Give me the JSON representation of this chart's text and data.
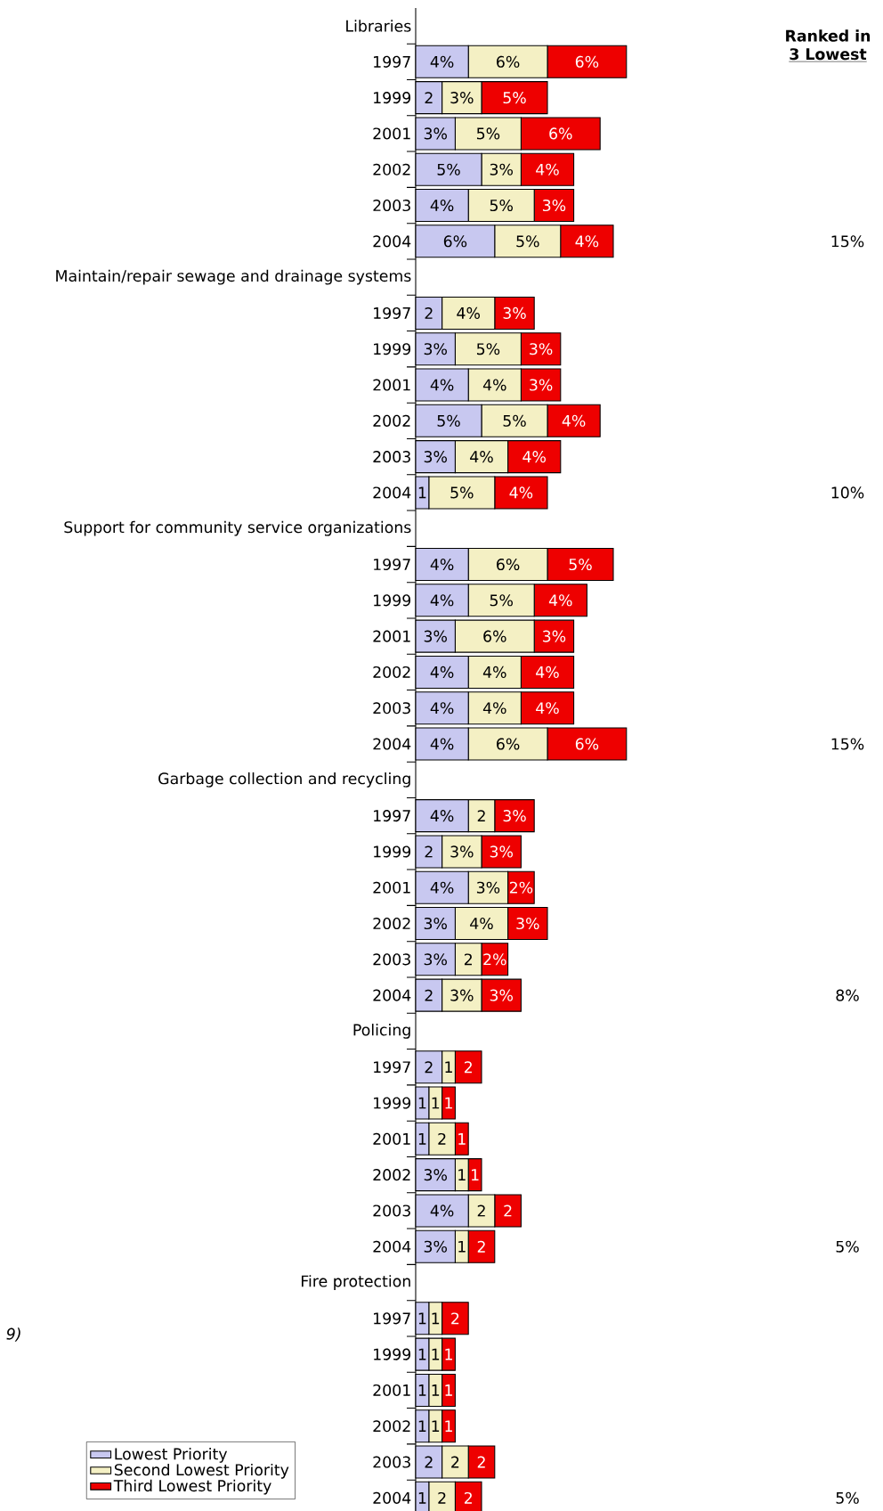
{
  "chart_data": {
    "type": "bar",
    "orientation": "horizontal",
    "stacked": true,
    "legend": "bottom left",
    "categories": [
      "Libraries",
      "1997",
      "1999",
      "2001",
      "2002",
      "2003",
      "2004",
      "Maintain/repair sewage and drainage systems",
      "1997",
      "1999",
      "2001",
      "2002",
      "2003",
      "2004",
      "Support for community service organizations",
      "1997",
      "1999",
      "2001",
      "2002",
      "2003",
      "2004",
      "Garbage collection and recycling",
      "1997",
      "1999",
      "2001",
      "2002",
      "2003",
      "2004",
      "Policing",
      "1997",
      "1999",
      "2001",
      "2002",
      "2003",
      "2004",
      "Fire protection",
      "1997",
      "1999",
      "2001",
      "2002",
      "2003",
      "2004"
    ],
    "series": [
      {
        "name": "Lowest Priority",
        "color": "#c8c8f0",
        "values": [
          null,
          4,
          2,
          3,
          5,
          4,
          6,
          null,
          2,
          3,
          4,
          5,
          3,
          1,
          null,
          4,
          4,
          3,
          4,
          4,
          4,
          null,
          4,
          2,
          4,
          3,
          3,
          2,
          null,
          2,
          1,
          1,
          3,
          4,
          3,
          null,
          1,
          1,
          1,
          1,
          2,
          1
        ],
        "value_labels": [
          null,
          "4%",
          "2",
          "3%",
          "5%",
          "4%",
          "6%",
          null,
          "2",
          "3%",
          "4%",
          "5%",
          "3%",
          "1",
          null,
          "4%",
          "4%",
          "3%",
          "4%",
          "4%",
          "4%",
          null,
          "4%",
          "2",
          "4%",
          "3%",
          "3%",
          "2",
          null,
          "2",
          "1",
          "1",
          "3%",
          "4%",
          "3%",
          null,
          "1",
          "1",
          "1",
          "1",
          "2",
          "1"
        ]
      },
      {
        "name": "Second Lowest Priority",
        "color": "#f4f0c4",
        "values": [
          null,
          6,
          3,
          5,
          3,
          5,
          5,
          null,
          4,
          5,
          4,
          5,
          4,
          5,
          null,
          6,
          5,
          6,
          4,
          4,
          6,
          null,
          2,
          3,
          3,
          4,
          2,
          3,
          null,
          1,
          1,
          2,
          1,
          2,
          1,
          null,
          1,
          1,
          1,
          1,
          2,
          2
        ],
        "value_labels": [
          null,
          "6%",
          "3%",
          "5%",
          "3%",
          "5%",
          "5%",
          null,
          "4%",
          "5%",
          "4%",
          "5%",
          "4%",
          "5%",
          null,
          "6%",
          "5%",
          "6%",
          "4%",
          "4%",
          "6%",
          null,
          "2",
          "3%",
          "3%",
          "4%",
          "2",
          "3%",
          null,
          "1",
          "1",
          "2",
          "1",
          "2",
          "1",
          null,
          "1",
          "1",
          "1",
          "1",
          "2",
          "2"
        ]
      },
      {
        "name": "Third Lowest Priority",
        "color": "#ee0000",
        "values": [
          null,
          6,
          5,
          6,
          4,
          3,
          4,
          null,
          3,
          3,
          3,
          4,
          4,
          4,
          null,
          5,
          4,
          3,
          4,
          4,
          6,
          null,
          3,
          3,
          2,
          3,
          2,
          3,
          null,
          2,
          1,
          1,
          1,
          2,
          2,
          null,
          2,
          1,
          1,
          1,
          2,
          2
        ],
        "value_labels": [
          null,
          "6%",
          "5%",
          "6%",
          "4%",
          "3%",
          "4%",
          null,
          "3%",
          "3%",
          "3%",
          "4%",
          "4%",
          "4%",
          null,
          "5%",
          "4%",
          "3%",
          "4%",
          "4%",
          "6%",
          null,
          "3%",
          "3%",
          "2%",
          "3%",
          "2%",
          "3%",
          null,
          "2",
          "1",
          "1",
          "1",
          "2",
          "2",
          null,
          "2",
          "1",
          "1",
          "1",
          "2",
          "2"
        ]
      }
    ],
    "annotations": [
      "Ranked in",
      "3 Lowest",
      "15%",
      "10%",
      "15%",
      "8%",
      "5%",
      "5%",
      "9)"
    ]
  }
}
